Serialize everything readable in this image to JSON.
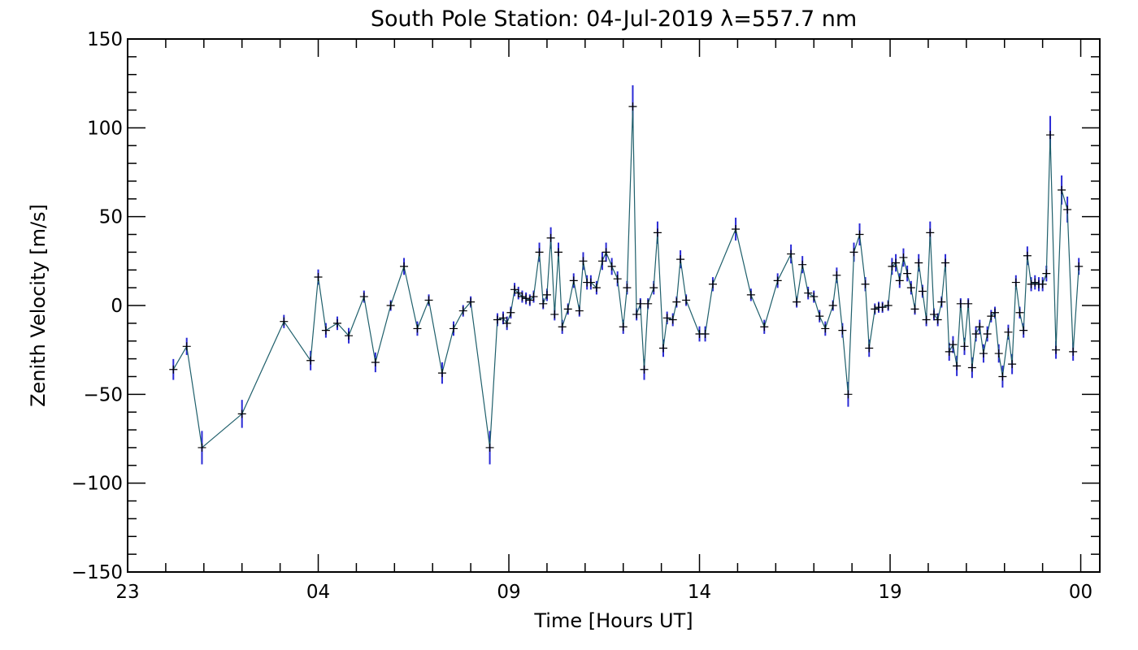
{
  "chart_data": {
    "type": "scatter",
    "title": "South Pole Station: 04-Jul-2019 λ=557.7 nm",
    "xlabel": "Time [Hours UT]",
    "ylabel": "Zenith Velocity [m/s]",
    "xlim": [
      23,
      48.5
    ],
    "ylim": [
      -150,
      150
    ],
    "x_ticks": [
      {
        "value": 23,
        "label": "23"
      },
      {
        "value": 28,
        "label": "04"
      },
      {
        "value": 33,
        "label": "09"
      },
      {
        "value": 38,
        "label": "14"
      },
      {
        "value": 43,
        "label": "19"
      },
      {
        "value": 48,
        "label": "00"
      }
    ],
    "y_ticks": [
      {
        "value": 150,
        "label": "150"
      },
      {
        "value": 100,
        "label": "100"
      },
      {
        "value": 50,
        "label": "50"
      },
      {
        "value": 0,
        "label": "0"
      },
      {
        "value": -50,
        "label": "−50"
      },
      {
        "value": -100,
        "label": "−100"
      },
      {
        "value": -150,
        "label": "−150"
      }
    ],
    "grid": false,
    "colors": {
      "line": "#1f5f6b",
      "error_bar": "#2a2ad6",
      "marker": "#000000",
      "axis": "#000000"
    },
    "series": [
      {
        "name": "557.7 nm zenith velocity",
        "x": [
          24.2,
          24.55,
          24.95,
          26.0,
          27.1,
          27.8,
          28.0,
          28.2,
          28.5,
          28.8,
          29.2,
          29.5,
          29.9,
          30.25,
          30.6,
          30.9,
          31.25,
          31.55,
          31.8,
          32.0,
          32.5,
          32.7,
          32.85,
          32.95,
          33.05,
          33.15,
          33.25,
          33.35,
          33.45,
          33.55,
          33.65,
          33.8,
          33.9,
          34.0,
          34.1,
          34.2,
          34.3,
          34.4,
          34.55,
          34.7,
          34.85,
          34.95,
          35.05,
          35.15,
          35.3,
          35.45,
          35.55,
          35.7,
          35.85,
          36.0,
          36.1,
          36.25,
          36.35,
          36.45,
          36.55,
          36.65,
          36.8,
          36.9,
          37.05,
          37.15,
          37.3,
          37.4,
          37.5,
          37.65,
          38.0,
          38.15,
          38.35,
          38.95,
          39.35,
          39.7,
          40.05,
          40.4,
          40.55,
          40.7,
          40.85,
          41.0,
          41.15,
          41.3,
          41.5,
          41.6,
          41.75,
          41.9,
          42.05,
          42.2,
          42.35,
          42.45,
          42.6,
          42.7,
          42.8,
          42.95,
          43.05,
          43.15,
          43.25,
          43.35,
          43.45,
          43.55,
          43.65,
          43.75,
          43.85,
          43.95,
          44.05,
          44.15,
          44.25,
          44.35,
          44.45,
          44.55,
          44.65,
          44.75,
          44.85,
          44.95,
          45.05,
          45.15,
          45.25,
          45.35,
          45.45,
          45.55,
          45.65,
          45.75,
          45.85,
          45.95,
          46.1,
          46.2,
          46.3,
          46.4,
          46.5,
          46.6,
          46.7,
          46.8,
          46.9,
          47.0,
          47.1,
          47.2,
          47.35,
          47.5,
          47.65,
          47.8,
          47.95
        ],
        "y": [
          -36,
          -23,
          -80,
          -61,
          -9,
          -31,
          16,
          -14,
          -10,
          -17,
          5,
          -32,
          0,
          22,
          -13,
          3,
          -38,
          -13,
          -3,
          2,
          -80,
          -8,
          -7,
          -10,
          -4,
          9,
          7,
          5,
          4,
          3,
          5,
          30,
          1,
          6,
          38,
          -5,
          30,
          -12,
          -2,
          14,
          -3,
          25,
          13,
          13,
          10,
          25,
          30,
          22,
          15,
          -12,
          10,
          112,
          -5,
          1,
          -36,
          1,
          10,
          41,
          -24,
          -7,
          -8,
          2,
          26,
          3,
          -16,
          -16,
          12,
          43,
          6,
          -12,
          14,
          29,
          2,
          23,
          7,
          5,
          -6,
          -13,
          0,
          17,
          -14,
          -50,
          30,
          40,
          12,
          -24,
          -2,
          -1,
          -1,
          0,
          22,
          24,
          14,
          27,
          18,
          10,
          -2,
          24,
          8,
          -8,
          41,
          -5,
          -8,
          2,
          24,
          -26,
          -22,
          -34,
          1,
          -23,
          1,
          -35,
          -16,
          -12,
          -27,
          -16,
          -6,
          -4,
          -27,
          -40,
          -15,
          -33,
          13,
          -4,
          -14,
          28,
          12,
          13,
          12,
          12,
          18,
          96,
          -25,
          65,
          54,
          -26,
          22
        ]
      }
    ]
  }
}
